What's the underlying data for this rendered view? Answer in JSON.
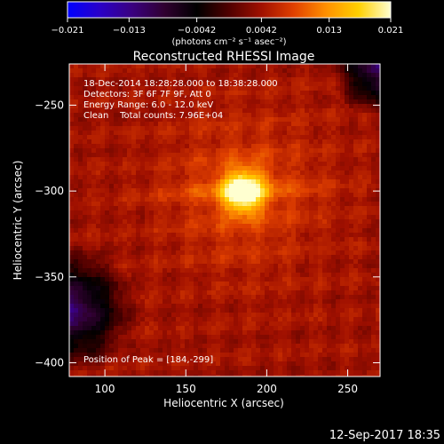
{
  "chart_data": {
    "type": "heatmap",
    "title": "Reconstructed RHESSI Image",
    "xlabel": "Heliocentric X (arcsec)",
    "ylabel": "Heliocentric Y (arcsec)",
    "xlim": [
      78,
      270
    ],
    "ylim": [
      -408,
      -226
    ],
    "xticks": [
      100,
      150,
      200,
      250
    ],
    "yticks": [
      -250,
      -300,
      -350,
      -400
    ],
    "colorbar": {
      "min": -0.021,
      "max": 0.021,
      "ticks": [
        {
          "value": -0.021,
          "label": "−0.021"
        },
        {
          "value": -0.013,
          "label": "−0.013"
        },
        {
          "value": -0.0042,
          "label": "−0.0042"
        },
        {
          "value": 0.0042,
          "label": "0.0042"
        },
        {
          "value": 0.013,
          "label": "0.013"
        },
        {
          "value": 0.021,
          "label": "0.021"
        }
      ],
      "units_label": "(photons cm⁻² s⁻¹ asec⁻²)",
      "colormap": [
        "#0000ff",
        "#2a00c8",
        "#3a0080",
        "#300030",
        "#000000",
        "#500000",
        "#a01000",
        "#e04000",
        "#ff9000",
        "#ffd000",
        "#ffffd0"
      ]
    },
    "annotations": [
      "18-Dec-2014 18:28:28.000 to 18:38:28.000",
      "Detectors: 3F 6F 7F 9F, Att 0",
      "Energy Range: 6.0 - 12.0 keV",
      "Clean    Total counts: 7.96E+04"
    ],
    "peak": {
      "x": 184,
      "y": -299,
      "label": "Position of Peak = [184,-299]"
    },
    "timestamp": "12-Sep-2017 18:35"
  }
}
